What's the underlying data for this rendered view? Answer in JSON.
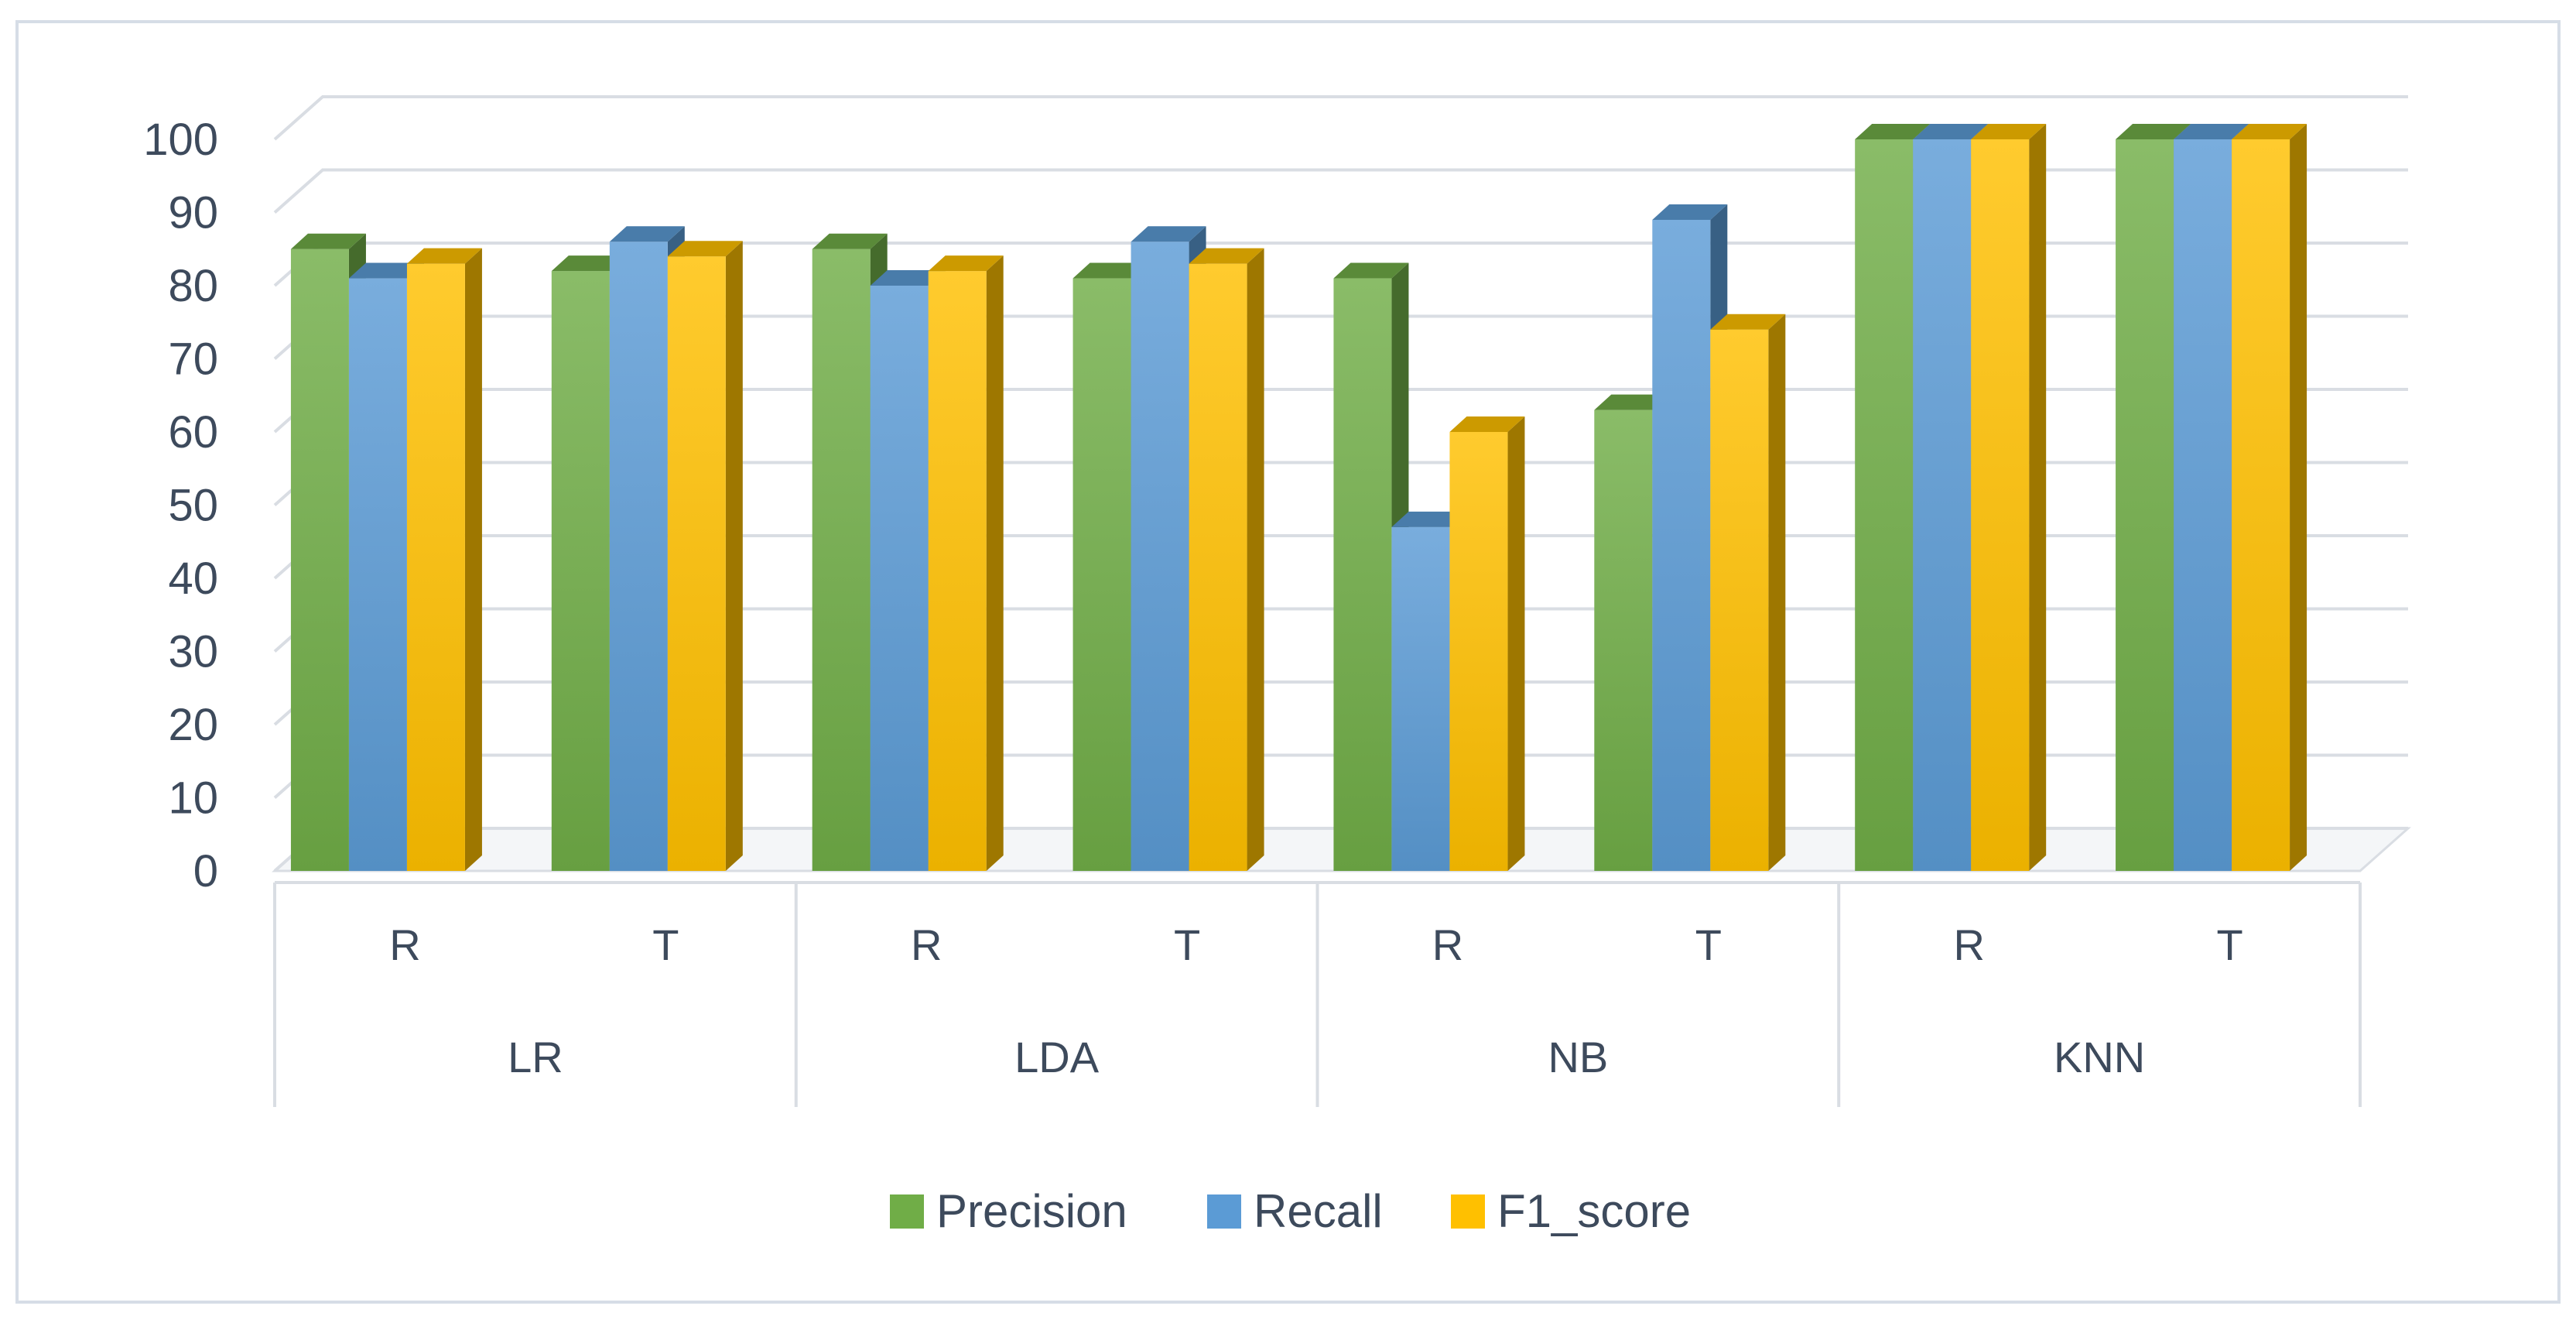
{
  "chart_data": {
    "type": "bar",
    "style": "3d-clustered-column",
    "title": "",
    "xlabel": "",
    "ylabel": "",
    "ylim": [
      0,
      100
    ],
    "y_ticks": [
      0,
      10,
      20,
      30,
      40,
      50,
      60,
      70,
      80,
      90,
      100
    ],
    "grid": true,
    "legend_position": "bottom",
    "groups": [
      {
        "name": "LR",
        "categories": [
          "R",
          "T"
        ]
      },
      {
        "name": "LDA",
        "categories": [
          "R",
          "T"
        ]
      },
      {
        "name": "NB",
        "categories": [
          "R",
          "T"
        ]
      },
      {
        "name": "KNN",
        "categories": [
          "R",
          "T"
        ]
      }
    ],
    "categories": [
      "R",
      "T",
      "R",
      "T",
      "R",
      "T",
      "R",
      "T"
    ],
    "series": [
      {
        "name": "Precision",
        "color": "#70ad47",
        "values": [
          85,
          82,
          85,
          81,
          81,
          63,
          100,
          100
        ]
      },
      {
        "name": "Recall",
        "color": "#5b9bd5",
        "values": [
          81,
          86,
          80,
          86,
          47,
          89,
          100,
          100
        ]
      },
      {
        "name": "F1_score",
        "color": "#ffc000",
        "values": [
          83,
          84,
          82,
          83,
          60,
          74,
          100,
          100
        ]
      }
    ]
  }
}
